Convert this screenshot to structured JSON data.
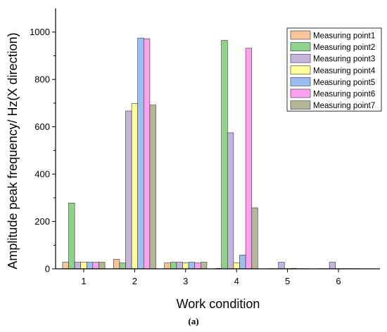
{
  "chart_data": {
    "type": "bar",
    "xlabel": "Work condition",
    "ylabel": "Amplitude peak frequency/ Hz(X direction)",
    "categories": [
      "1",
      "2",
      "3",
      "4",
      "5",
      "6"
    ],
    "yticks": [
      "0",
      "200",
      "400",
      "600",
      "800",
      "1000"
    ],
    "ylim": [
      0,
      1100
    ],
    "grid": false,
    "legend_position": "top-right",
    "series": [
      {
        "name": "Measuring point1",
        "color": "#f9c39b",
        "values": [
          28,
          40,
          25,
          2,
          1,
          1
        ]
      },
      {
        "name": "Measuring point2",
        "color": "#8ed28c",
        "values": [
          278,
          25,
          28,
          965,
          1,
          1
        ]
      },
      {
        "name": "Measuring point3",
        "color": "#c5b5dc",
        "values": [
          28,
          667,
          28,
          575,
          28,
          28
        ]
      },
      {
        "name": "Measuring point4",
        "color": "#ffff99",
        "values": [
          28,
          698,
          25,
          25,
          1,
          1
        ]
      },
      {
        "name": "Measuring point5",
        "color": "#9bbff0",
        "values": [
          28,
          975,
          28,
          58,
          2,
          1
        ]
      },
      {
        "name": "Measuring point6",
        "color": "#fca0ef",
        "values": [
          28,
          972,
          25,
          932,
          1,
          1
        ]
      },
      {
        "name": "Measuring point7",
        "color": "#b5b597",
        "values": [
          28,
          692,
          28,
          258,
          1,
          1
        ]
      }
    ]
  },
  "caption": "(a)"
}
